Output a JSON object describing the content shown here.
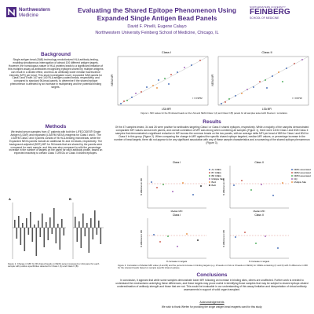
{
  "header": {
    "title": "Evaluating the Shared Epitope Phenomenon Using Expanded Single Antigen Bead Panels",
    "authors": "David F. Pinelli, Eugene Calayo",
    "affiliation": "Northwestern University Feinberg School of Medicine, Chicago, IL",
    "logo_left": {
      "line1": "Northwestern",
      "line2": "Medicine"
    },
    "logo_right": {
      "line1": "NORTHWESTERN UNIVERSITY",
      "line2": "FEINBERG",
      "line3": "SCHOOL OF MEDICINE"
    }
  },
  "background": {
    "heading": "Background",
    "text": "Single antigen bead (SAB) technology revolutionized HLA antibody testing, enabling simultaneous interrogation of almost 100 different antigen targets. However, the homologous nature of HLA proteins leads to a significant limitation of this multiplex assay as antibodies recognizing epitopes shared by multiple antigens can result in a diluted effect, and thus an artificially lower median fluorescence intensity (MFI) per bead. This study investigated novel, expanded SAB panels for Class I and II with 147 and 140 HLA antigen-coated beads, respectively, and compared to standard 96-bead panels, to determine if the shared epitope phenomenon is affected by an increase in multiplexing and the potential binding targets."
  },
  "methods": {
    "heading": "Methods",
    "text": "We tested serum samples from 47 patients with both the LIFECODES® Single Antigen (LSA®) and expanded (LSA®M NEXA) reagents for Class I and II. The LSA®M Class I and II panels consist of 96 HLA-bearing microbeads, while the Expanded NEXA panels include an additional 51 and 44 beads, respectively. The background-adjusted (BCR) MFI for 96 beads that are shared by the panels were compared for each sample, and this was also compared in with the percentage increase in the number of targets on the panel for each antibody profile, based on expected reactivity to certain Class I CREGs or Class II shared epitopes."
  },
  "figure2": {
    "panels": [
      "A",
      "B"
    ],
    "caption": "Figure 2. Change in MFI for 96 shared beads on NEXA panel compared to LSA panel for each sample with positive specificities detected for Class I (A) and Class II (B)."
  },
  "figure1": {
    "panels": [
      {
        "title": "Class I",
        "x_label": "LSA MFI",
        "y_label": "NEXA MFI",
        "r": "r = 0.9762"
      },
      {
        "title": "Class II",
        "x_label": "LSA MFI",
        "y_label": "NEXA MFI",
        "r": "r = 0.9710"
      }
    ],
    "caption": "Figure 1. MFI values for the 96 shared beads on the LSA and NEXA Class I (A) and Class II (B) panels for all samples tested with Pearson r correlation."
  },
  "results": {
    "heading": "Results",
    "text": "Of the 47 samples tested, 34 and 26 were positive for antibodies targeting Class I or Class II shared epitopes, respectively. While a majority of the samples demonstrated comparable MFI values across both panels, and overall correlation of MFI was strong when combining all samples (Figure 1), there were 14/34 Class I and 8/26 Class II samples that demonstrated a significant reduction in MFI across the common beads on the two panels, with an average delta MFI per bead of 889 for Class I and 804 for Class II in this group (Figure 2). When comparing the change in MFI against the specific shared epitope targeted, median MFI values, or percentage increase in the number of bead targets, there did not appear to be any significant association with any of these sample characteristics and a worsening of the shared epitope phenomenon (Figure 3)."
  },
  "figure3": {
    "panels": [
      {
        "title": "Class I"
      },
      {
        "title": "Class II"
      }
    ],
    "x_labels": [
      "Median MFI",
      "% Increase in targets"
    ],
    "y_label": "% difference in MFI",
    "legends": [
      [
        "A1 CREG",
        "B7 CREG",
        "B8 CREG",
        "Multiple SEs",
        "Bw4",
        "Bw6"
      ],
      [
        "DR51 associated",
        "DR52 associated",
        "DR53 associated",
        "DQ",
        "Multiple SEs"
      ]
    ],
    "caption": "Figure 3. Correlation of Median MFI value (A and B) and the percent increase in binding targets (e.g. # beads on LSA vs # beads on NEXA) for CREG-containing (C and D) with % difference in MFI for the relevant beads based on sample specific shared epitope."
  },
  "conclusions": {
    "heading": "Conclusions",
    "text": "In conclusion, it appears that while some samples demonstrate lower MFI following an increase in binding sites, others are unaffected. Further work is needed to understand the mechanisms underlying these differences, and these targets may prove useful in identifying those samples that may be subject to shared epitope-related underestimation of antibody strength and those that are not. This would be invaluable in our understanding of this assay limitation and interpretation of virtual antibody assessments in support of solid organ transplant."
  },
  "acknowledgements": {
    "heading": "Acknowledgements",
    "text": "We wish to thank Werfen for providing the single antigen bead reagents used for this study."
  }
}
